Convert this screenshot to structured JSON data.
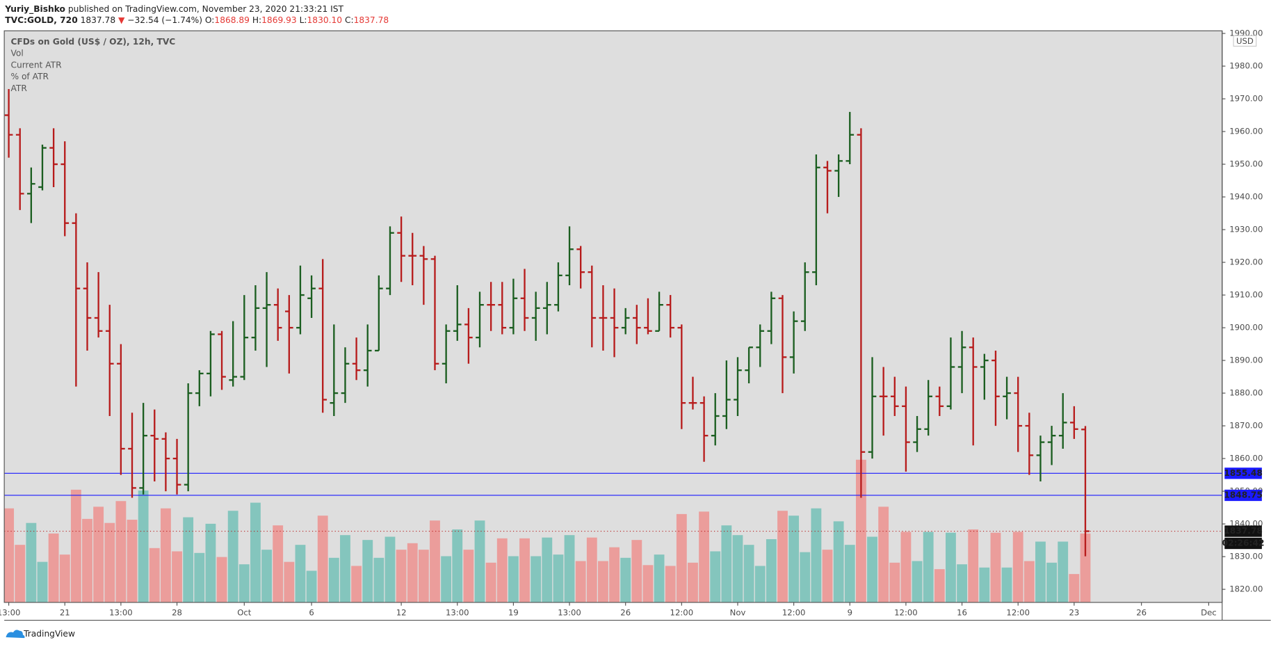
{
  "header": {
    "author": "Yuriy_Bishko",
    "published": "published on TradingView.com, November 23, 2020 21:33:21 IST",
    "symbol": "TVC:GOLD, 720",
    "last": "1837.78",
    "change_arrow": "▼",
    "change": "−32.54 (−1.74%)",
    "o_label": "O:",
    "o": "1868.89",
    "h_label": "H:",
    "h": "1869.93",
    "l_label": "L:",
    "l": "1830.10",
    "c_label": "C:",
    "c": "1837.78"
  },
  "footer": {
    "brand": "TradingView"
  },
  "chart_data": {
    "type": "ohlc",
    "title": "CFDs on Gold (US$ / OZ), 12h, TVC",
    "indicators": [
      "Vol",
      "Current ATR",
      "% of ATR",
      "ATR"
    ],
    "currency": "USD",
    "up_color": "#1b5e20",
    "down_color": "#b71c1c",
    "volume_up_color": "#84c5bd",
    "volume_down_color": "#eb9d9b",
    "open": [
      1965,
      1959,
      1941,
      1943,
      1955,
      1950,
      1932,
      1912,
      1903,
      1899,
      1889,
      1863,
      1851,
      1867,
      1866,
      1860,
      1852,
      1880,
      1886,
      1898,
      1884,
      1885,
      1897,
      1906,
      1907,
      1905,
      1900,
      1909,
      1912,
      1877,
      1880,
      1889,
      1887,
      1893,
      1912,
      1929,
      1922,
      1922,
      1921,
      1889,
      1899,
      1901,
      1897,
      1907,
      1907,
      1900,
      1909,
      1903,
      1906,
      1907,
      1916,
      1924,
      1917,
      1903,
      1903,
      1900,
      1903,
      1900,
      1899,
      1907,
      1900,
      1877,
      1877,
      1867,
      1873,
      1878,
      1887,
      1894,
      1899,
      1909,
      1891,
      1902,
      1917,
      1949,
      1948,
      1951,
      1959,
      1862,
      1879,
      1879,
      1876,
      1865,
      1869,
      1879,
      1876,
      1888,
      1894,
      1888,
      1890,
      1879,
      1880,
      1870,
      1861,
      1865,
      1867,
      1871,
      1868.89
    ],
    "high": [
      1973,
      1961,
      1949,
      1956,
      1961,
      1957,
      1935,
      1920,
      1917,
      1907,
      1895,
      1874,
      1877,
      1875,
      1868,
      1866,
      1883,
      1887,
      1899,
      1899,
      1902,
      1910,
      1913,
      1917,
      1912,
      1910,
      1919,
      1916,
      1921,
      1901,
      1894,
      1897,
      1901,
      1916,
      1931,
      1934,
      1929,
      1925,
      1922,
      1901,
      1913,
      1906,
      1911,
      1914,
      1914,
      1915,
      1918,
      1911,
      1914,
      1920,
      1931,
      1925,
      1919,
      1913,
      1912,
      1906,
      1907,
      1909,
      1911,
      1910,
      1901,
      1885,
      1879,
      1880,
      1890,
      1891,
      1894,
      1901,
      1911,
      1910,
      1905,
      1920,
      1953,
      1951,
      1953,
      1966,
      1961,
      1891,
      1888,
      1885,
      1882,
      1873,
      1884,
      1882,
      1897,
      1899,
      1897,
      1892,
      1893,
      1885,
      1885,
      1874,
      1867,
      1870,
      1880,
      1876,
      1869.93
    ],
    "low": [
      1952,
      1936,
      1932,
      1942,
      1943,
      1928,
      1882,
      1893,
      1897,
      1873,
      1855,
      1848,
      1849,
      1853,
      1850,
      1849,
      1850,
      1876,
      1879,
      1881,
      1882,
      1884,
      1893,
      1888,
      1896,
      1886,
      1898,
      1903,
      1874,
      1873,
      1877,
      1884,
      1882,
      1893,
      1910,
      1914,
      1913,
      1907,
      1887,
      1883,
      1896,
      1889,
      1894,
      1899,
      1898,
      1898,
      1899,
      1896,
      1898,
      1905,
      1913,
      1912,
      1894,
      1893,
      1891,
      1898,
      1895,
      1898,
      1899,
      1897,
      1869,
      1875,
      1859,
      1864,
      1869,
      1873,
      1883,
      1888,
      1895,
      1880,
      1886,
      1899,
      1913,
      1935,
      1940,
      1950,
      1848,
      1860,
      1867,
      1873,
      1856,
      1862,
      1867,
      1873,
      1875,
      1880,
      1864,
      1878,
      1870,
      1872,
      1862,
      1855,
      1853,
      1858,
      1863,
      1866,
      1830.1
    ],
    "close": [
      1959,
      1941,
      1944,
      1955,
      1950,
      1932,
      1912,
      1903,
      1899,
      1889,
      1863,
      1851,
      1867,
      1866,
      1860,
      1852,
      1880,
      1886,
      1898,
      1885,
      1885,
      1897,
      1906,
      1907,
      1900,
      1900,
      1910,
      1912,
      1878,
      1880,
      1889,
      1887,
      1893,
      1912,
      1929,
      1922,
      1922,
      1921,
      1889,
      1899,
      1901,
      1897,
      1907,
      1907,
      1900,
      1909,
      1903,
      1906,
      1907,
      1916,
      1924,
      1917,
      1903,
      1903,
      1900,
      1903,
      1900,
      1899,
      1907,
      1900,
      1877,
      1877,
      1867,
      1873,
      1878,
      1887,
      1894,
      1899,
      1909,
      1891,
      1902,
      1917,
      1949,
      1948,
      1951,
      1959,
      1862,
      1879,
      1879,
      1876,
      1865,
      1869,
      1879,
      1876,
      1888,
      1894,
      1888,
      1890,
      1879,
      1880,
      1870,
      1861,
      1865,
      1867,
      1871,
      1869,
      1837.78
    ],
    "volume": [
      116,
      71,
      98,
      50,
      85,
      59,
      139,
      103,
      118,
      98,
      125,
      102,
      138,
      67,
      116,
      63,
      105,
      61,
      97,
      56,
      113,
      47,
      123,
      65,
      95,
      50,
      71,
      39,
      107,
      55,
      83,
      45,
      77,
      55,
      81,
      65,
      73,
      65,
      101,
      57,
      90,
      65,
      101,
      49,
      79,
      57,
      79,
      57,
      80,
      59,
      83,
      51,
      80,
      51,
      68,
      55,
      77,
      46,
      59,
      45,
      109,
      49,
      112,
      63,
      95,
      83,
      71,
      45,
      78,
      113,
      107,
      62,
      116,
      65,
      100,
      71,
      176,
      81,
      118,
      49,
      87,
      51,
      87,
      41,
      86,
      47,
      90,
      43,
      86,
      43,
      87,
      51,
      75,
      49,
      75,
      35,
      85
    ],
    "xlim": [
      -0.4,
      108.2
    ],
    "xticks": [
      {
        "value": 0,
        "label": "13:00"
      },
      {
        "value": 5,
        "label": "21"
      },
      {
        "value": 10,
        "label": "13:00"
      },
      {
        "value": 15,
        "label": "28"
      },
      {
        "value": 21,
        "label": "Oct"
      },
      {
        "value": 27,
        "label": "6"
      },
      {
        "value": 35,
        "label": "12"
      },
      {
        "value": 40,
        "label": "13:00"
      },
      {
        "value": 45,
        "label": "19"
      },
      {
        "value": 50,
        "label": "13:00"
      },
      {
        "value": 55,
        "label": "26"
      },
      {
        "value": 60,
        "label": "12:00"
      },
      {
        "value": 65,
        "label": "Nov"
      },
      {
        "value": 70,
        "label": "12:00"
      },
      {
        "value": 75,
        "label": "9"
      },
      {
        "value": 80,
        "label": "12:00"
      },
      {
        "value": 85,
        "label": "16"
      },
      {
        "value": 90,
        "label": "12:00"
      },
      {
        "value": 95,
        "label": "23"
      },
      {
        "value": 101,
        "label": "26"
      },
      {
        "value": 107,
        "label": "Dec"
      }
    ],
    "ylim": [
      1816.0,
      1990.8
    ],
    "yticks": [
      {
        "value": 1820,
        "label": "1820.00"
      },
      {
        "value": 1830,
        "label": "1830.00"
      },
      {
        "value": 1840,
        "label": "1840.00"
      },
      {
        "value": 1850,
        "label": "1850.00"
      },
      {
        "value": 1860,
        "label": "1860.00"
      },
      {
        "value": 1870,
        "label": "1870.00"
      },
      {
        "value": 1880,
        "label": "1880.00"
      },
      {
        "value": 1890,
        "label": "1890.00"
      },
      {
        "value": 1900,
        "label": "1900.00"
      },
      {
        "value": 1910,
        "label": "1910.00"
      },
      {
        "value": 1920,
        "label": "1920.00"
      },
      {
        "value": 1930,
        "label": "1930.00"
      },
      {
        "value": 1940,
        "label": "1940.00"
      },
      {
        "value": 1950,
        "label": "1950.00"
      },
      {
        "value": 1960,
        "label": "1960.00"
      },
      {
        "value": 1970,
        "label": "1970.00"
      },
      {
        "value": 1980,
        "label": "1980.00"
      },
      {
        "value": 1990,
        "label": "1990.00"
      }
    ],
    "hlines": [
      1855.48,
      1848.75
    ],
    "hline_color": "#1a1aff",
    "last_price": 1837.78,
    "countdown": "02:26:42"
  }
}
